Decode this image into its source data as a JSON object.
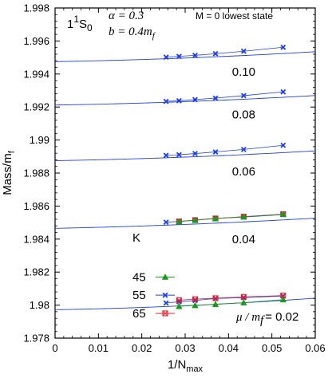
{
  "chart_data": {
    "type": "line",
    "xlabel": "1/N",
    "xlabel_sub": "max",
    "ylabel": "Mass/m",
    "ylabel_sub": "f",
    "xlim": [
      0,
      0.06
    ],
    "ylim": [
      1.978,
      1.998
    ],
    "xticks": [
      "0",
      "0.01",
      "0.02",
      "0.03",
      "0.04",
      "0.05",
      "0.06"
    ],
    "yticks": [
      "1.978",
      "1.98",
      "1.982",
      "1.984",
      "1.986",
      "1.988",
      "1.99",
      "1.992",
      "1.994",
      "1.996",
      "1.998"
    ],
    "annotations": {
      "state": "1",
      "state_sup": "1",
      "state_main": "S",
      "state_sub": "0",
      "alpha": "α = 0.3",
      "b": "b = 0.4m",
      "b_sub": "f",
      "mode": "M = 0 lowest state",
      "mu_prefix": "μ / m",
      "mu_sub": "f",
      "mu_suffix": "= 0.02"
    },
    "legend": {
      "title": "K",
      "entries": [
        {
          "label": "45",
          "color": "#1a9a1a",
          "marker": "triangle"
        },
        {
          "label": "55",
          "color": "#1f3fe0",
          "marker": "x"
        },
        {
          "label": "65",
          "color": "#e0202a",
          "marker": "square-x"
        }
      ]
    },
    "groups": [
      {
        "label": "0.10",
        "fit": {
          "a": 1.99475,
          "b": 0.0045,
          "c": 0.092,
          "color": "#1f3fe0"
        },
        "series": [
          {
            "name": "55",
            "x": [
              0.0256,
              0.0286,
              0.0323,
              0.037,
              0.0435,
              0.0526
            ],
            "y": [
              1.99502,
              1.99507,
              1.99513,
              1.99523,
              1.99538,
              1.99562
            ]
          }
        ]
      },
      {
        "label": "0.08",
        "fit": {
          "a": 1.99212,
          "b": 0.0042,
          "c": 0.09,
          "color": "#1f3fe0"
        },
        "series": [
          {
            "name": "55",
            "x": [
              0.0256,
              0.0286,
              0.0323,
              0.037,
              0.0435,
              0.0526
            ],
            "y": [
              1.99234,
              1.99238,
              1.99245,
              1.99254,
              1.99269,
              1.99292
            ]
          }
        ]
      },
      {
        "label": "0.06",
        "fit": {
          "a": 1.98875,
          "b": 0.0045,
          "c": 0.09,
          "color": "#1f3fe0"
        },
        "series": [
          {
            "name": "55",
            "x": [
              0.0256,
              0.0286,
              0.0323,
              0.037,
              0.0435,
              0.0526
            ],
            "y": [
              1.98907,
              1.98911,
              1.98918,
              1.98928,
              1.98943,
              1.98968
            ]
          }
        ]
      },
      {
        "label": "0.04",
        "fit": {
          "a": 1.98465,
          "b": 0.0055,
          "c": 0.08,
          "color": "#1f3fe0"
        },
        "series": [
          {
            "name": "55",
            "x": [
              0.0256,
              0.0286,
              0.0323,
              0.037,
              0.0435,
              0.0526
            ],
            "y": [
              1.98502,
              1.98507,
              1.98515,
              1.98526,
              1.98533,
              1.98548
            ]
          },
          {
            "name": "65",
            "x": [
              0.0286,
              0.0323,
              0.037,
              0.0435,
              0.0526
            ],
            "y": [
              1.98507,
              1.98515,
              1.98525,
              1.98536,
              1.98551
            ]
          },
          {
            "name": "45",
            "x": [
              0.0286,
              0.0323,
              0.037,
              0.0435,
              0.0526
            ],
            "y": [
              1.98506,
              1.98514,
              1.98524,
              1.98535,
              1.9855
            ]
          }
        ]
      },
      {
        "label": "0.02",
        "fit": {
          "a": 1.97972,
          "b": 0.0045,
          "c": 0.12,
          "color": "#1f3fe0"
        },
        "series": [
          {
            "name": "55",
            "x": [
              0.0256,
              0.0286,
              0.0323,
              0.037,
              0.0435,
              0.0526
            ],
            "y": [
              1.98013,
              1.9802,
              1.98028,
              1.9804,
              1.98045,
              1.98055
            ]
          },
          {
            "name": "65",
            "x": [
              0.0286,
              0.0323,
              0.037,
              0.0435,
              0.0526
            ],
            "y": [
              1.9803,
              1.98036,
              1.98042,
              1.9805,
              1.98058
            ]
          },
          {
            "name": "45",
            "x": [
              0.0286,
              0.0323,
              0.037,
              0.0435,
              0.0526
            ],
            "y": [
              1.97993,
              1.97998,
              1.98005,
              1.98015,
              1.98033
            ]
          }
        ]
      }
    ]
  }
}
